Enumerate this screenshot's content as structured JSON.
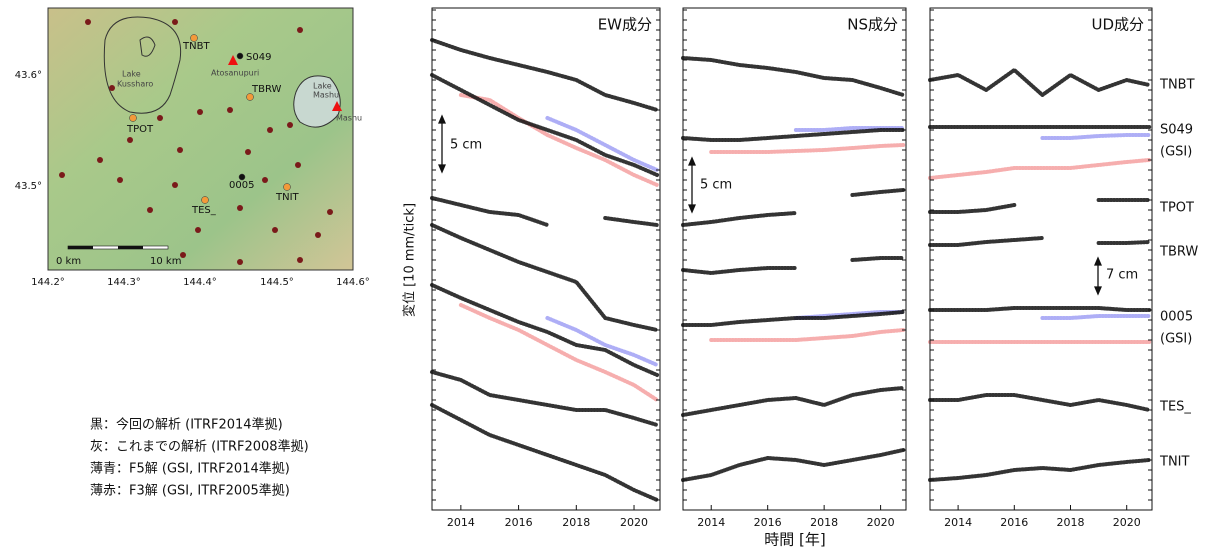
{
  "map": {
    "lat_ticks": [
      "43.6°",
      "43.5°"
    ],
    "lon_ticks": [
      "144.2°",
      "144.3°",
      "144.4°",
      "144.5°",
      "144.6°"
    ],
    "stations": [
      "TNBT",
      "S049",
      "TBRW",
      "TPOT",
      "0005",
      "TES_",
      "TNIT"
    ],
    "places": [
      "Lake",
      "Kussharo",
      "Atosanupuri",
      "Lake",
      "Mashu",
      "Mashu"
    ],
    "scale": [
      "0 km",
      "10 km"
    ]
  },
  "legend": [
    "黒：今回の解析 (ITRF2014準拠)",
    "灰：これまでの解析 (ITRF2008準拠)",
    "薄青：F5解 (GSI, ITRF2014準拠)",
    "薄赤：F3解 (GSI, ITRF2005準拠)"
  ],
  "ylabel": "変位 [10 mm/tick]",
  "xlabel": "時間 [年]",
  "station_labels": [
    "TNBT",
    "S049",
    "(GSI)",
    "TPOT",
    "TBRW",
    "0005",
    "(GSI)",
    "TES_",
    "TNIT"
  ],
  "scale_labels": [
    "5 cm",
    "5 cm",
    "7 cm"
  ],
  "shared": {
    "x": [
      2013,
      2014,
      2015,
      2016,
      2017,
      2018,
      2019,
      2020,
      2020.8
    ],
    "xlim": [
      2013,
      2020.9
    ],
    "xticks": [
      2014,
      2016,
      2018,
      2020
    ],
    "ylim": [
      0,
      502
    ],
    "yticks": [
      0,
      10,
      20,
      30,
      40,
      50,
      60,
      70,
      80,
      90,
      100,
      110,
      120,
      130,
      140,
      150,
      160,
      170,
      180,
      190,
      200,
      210,
      220,
      230,
      240,
      250,
      260,
      270,
      280,
      290,
      300,
      310,
      320,
      330,
      340,
      350,
      360,
      370,
      380,
      390,
      400,
      410,
      420,
      430,
      440,
      450,
      460,
      470,
      480,
      490,
      500
    ]
  },
  "chart_data": [
    {
      "type": "scatter",
      "title": "EW成分",
      "series": [
        {
          "name": "TNBT",
          "color": "#111111",
          "values": [
            470,
            460,
            452,
            445,
            438,
            430,
            415,
            407,
            400
          ]
        },
        {
          "name": "S049",
          "color": "#f4a0a0",
          "values": [
            null,
            415,
            410,
            392,
            375,
            362,
            350,
            335,
            325
          ]
        },
        {
          "name": "S049",
          "color": "#a0a0f4",
          "values": [
            null,
            null,
            null,
            null,
            392,
            380,
            365,
            350,
            340
          ]
        },
        {
          "name": "S049",
          "color": "#111111",
          "values": [
            435,
            420,
            405,
            390,
            380,
            370,
            355,
            345,
            335
          ]
        },
        {
          "name": "TPOT",
          "color": "#111111",
          "values": [
            312,
            305,
            298,
            295,
            285,
            null,
            292,
            288,
            285
          ]
        },
        {
          "name": "TBRW",
          "color": "#111111",
          "values": [
            285,
            272,
            260,
            248,
            238,
            228,
            192,
            185,
            180
          ]
        },
        {
          "name": "0005",
          "color": "#f4a0a0",
          "values": [
            null,
            205,
            192,
            180,
            165,
            150,
            138,
            125,
            110
          ]
        },
        {
          "name": "0005",
          "color": "#a0a0f4",
          "values": [
            null,
            null,
            null,
            null,
            192,
            180,
            165,
            155,
            145
          ]
        },
        {
          "name": "0005",
          "color": "#111111",
          "values": [
            225,
            212,
            200,
            188,
            178,
            165,
            160,
            145,
            135
          ]
        },
        {
          "name": "TES_",
          "color": "#111111",
          "values": [
            138,
            130,
            115,
            110,
            105,
            100,
            100,
            92,
            85
          ]
        },
        {
          "name": "TNIT",
          "color": "#111111",
          "values": [
            105,
            90,
            75,
            65,
            55,
            45,
            35,
            20,
            10
          ]
        }
      ]
    },
    {
      "type": "scatter",
      "title": "NS成分",
      "series": [
        {
          "name": "TNBT",
          "color": "#111111",
          "values": [
            452,
            450,
            445,
            442,
            438,
            432,
            430,
            422,
            415
          ]
        },
        {
          "name": "S049",
          "color": "#f4a0a0",
          "values": [
            null,
            358,
            358,
            358,
            359,
            360,
            362,
            364,
            365
          ]
        },
        {
          "name": "S049",
          "color": "#a0a0f4",
          "values": [
            null,
            null,
            null,
            null,
            380,
            380,
            382,
            382,
            382
          ]
        },
        {
          "name": "S049",
          "color": "#111111",
          "values": [
            372,
            370,
            370,
            372,
            374,
            376,
            378,
            380,
            380
          ]
        },
        {
          "name": "TPOT",
          "color": "#111111",
          "values": [
            285,
            288,
            292,
            295,
            297,
            null,
            315,
            318,
            320
          ]
        },
        {
          "name": "TBRW",
          "color": "#111111",
          "values": [
            240,
            237,
            240,
            242,
            242,
            null,
            250,
            252,
            252
          ]
        },
        {
          "name": "0005",
          "color": "#f4a0a0",
          "values": [
            null,
            170,
            170,
            170,
            170,
            172,
            174,
            178,
            180
          ]
        },
        {
          "name": "0005",
          "color": "#a0a0f4",
          "values": [
            null,
            null,
            null,
            null,
            192,
            194,
            196,
            198,
            198
          ]
        },
        {
          "name": "0005",
          "color": "#111111",
          "values": [
            185,
            185,
            188,
            190,
            192,
            192,
            194,
            196,
            198
          ]
        },
        {
          "name": "TES_",
          "color": "#111111",
          "values": [
            95,
            100,
            105,
            110,
            112,
            105,
            115,
            120,
            122
          ]
        },
        {
          "name": "TNIT",
          "color": "#111111",
          "values": [
            30,
            35,
            45,
            52,
            50,
            45,
            50,
            55,
            60
          ]
        }
      ]
    },
    {
      "type": "scatter",
      "title": "UD成分",
      "series": [
        {
          "name": "TNBT",
          "color": "#111111",
          "values": [
            430,
            435,
            420,
            440,
            415,
            435,
            420,
            430,
            425
          ]
        },
        {
          "name": "S049",
          "color": "#f4a0a0",
          "values": [
            332,
            335,
            338,
            342,
            342,
            342,
            345,
            348,
            350
          ]
        },
        {
          "name": "S049",
          "color": "#a0a0f4",
          "values": [
            null,
            null,
            null,
            null,
            372,
            372,
            374,
            375,
            375
          ]
        },
        {
          "name": "S049",
          "color": "#111111",
          "values": [
            383,
            383,
            383,
            383,
            383,
            383,
            383,
            383,
            383
          ]
        },
        {
          "name": "TPOT",
          "color": "#111111",
          "values": [
            298,
            298,
            300,
            305,
            null,
            null,
            310,
            310,
            310
          ]
        },
        {
          "name": "TBRW",
          "color": "#111111",
          "values": [
            265,
            265,
            268,
            270,
            272,
            null,
            267,
            267,
            268
          ]
        },
        {
          "name": "0005",
          "color": "#f4a0a0",
          "values": [
            168,
            168,
            168,
            168,
            168,
            168,
            168,
            168,
            168
          ]
        },
        {
          "name": "0005",
          "color": "#a0a0f4",
          "values": [
            null,
            null,
            null,
            null,
            192,
            192,
            194,
            194,
            194
          ]
        },
        {
          "name": "0005",
          "color": "#111111",
          "values": [
            200,
            200,
            200,
            202,
            202,
            202,
            202,
            200,
            200
          ]
        },
        {
          "name": "TES_",
          "color": "#111111",
          "values": [
            110,
            110,
            115,
            115,
            110,
            105,
            110,
            105,
            100
          ]
        },
        {
          "name": "TNIT",
          "color": "#111111",
          "values": [
            30,
            32,
            35,
            40,
            42,
            40,
            45,
            48,
            50
          ]
        }
      ]
    }
  ]
}
